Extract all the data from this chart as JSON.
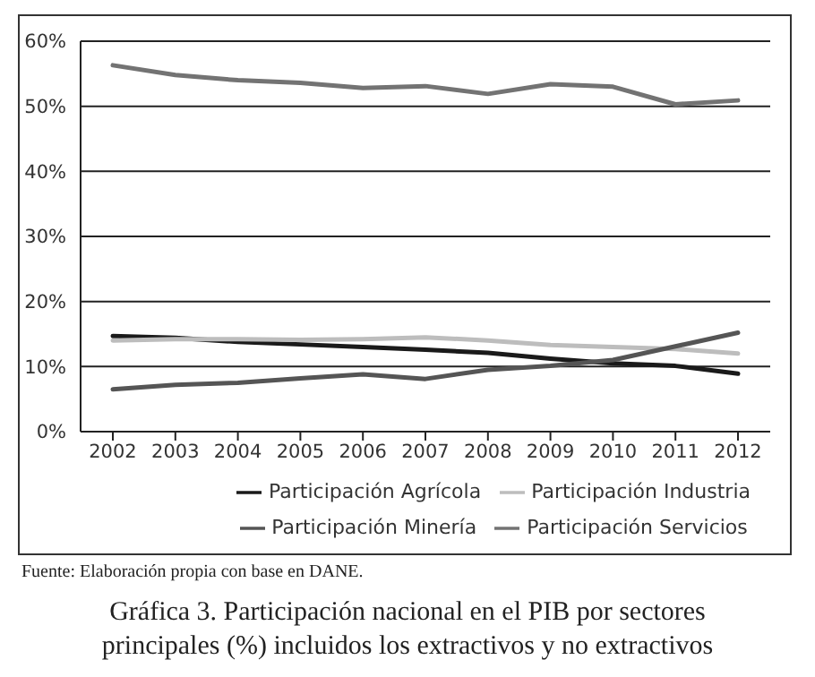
{
  "chart_data": {
    "type": "line",
    "title": "Gráfica 3. Participación nacional en el PIB por sectores principales (%) incluidos los extractivos y no extractivos",
    "annotations": [
      "Fuente: Elaboración propia con base en DANE."
    ],
    "categories": [
      "2002",
      "2003",
      "2004",
      "2005",
      "2006",
      "2007",
      "2008",
      "2009",
      "2010",
      "2011",
      "2012"
    ],
    "series": [
      {
        "name": "Participación Agrícola",
        "color": "#1a1a1a",
        "values": [
          14.7,
          14.4,
          13.8,
          13.4,
          13.0,
          12.6,
          12.1,
          11.2,
          10.5,
          10.1,
          8.9
        ]
      },
      {
        "name": "Participación Industria",
        "color": "#bdbdbd",
        "values": [
          14.0,
          14.2,
          14.2,
          14.1,
          14.2,
          14.5,
          14.0,
          13.3,
          13.0,
          12.7,
          12.0
        ]
      },
      {
        "name": "Participación Servicios",
        "color": "#737373",
        "values": [
          56.3,
          54.8,
          54.0,
          53.6,
          52.8,
          53.1,
          51.9,
          53.4,
          53.0,
          50.3,
          50.9
        ]
      },
      {
        "name": "Participación Minería",
        "color": "#555555",
        "values": [
          6.5,
          7.2,
          7.5,
          8.2,
          8.8,
          8.1,
          9.5,
          10.1,
          11.0,
          13.1,
          15.2
        ]
      }
    ],
    "ylim": [
      0,
      60
    ],
    "yticks": [
      {
        "value": 0,
        "label": "0%"
      },
      {
        "value": 10,
        "label": "10%"
      },
      {
        "value": 20,
        "label": "20%"
      },
      {
        "value": 30,
        "label": "30%"
      },
      {
        "value": 40,
        "label": "40%"
      },
      {
        "value": 50,
        "label": "50%"
      },
      {
        "value": 60,
        "label": "60%"
      }
    ],
    "grid": "y",
    "legend": "bottom",
    "marker": "none",
    "line_style": "solid"
  }
}
